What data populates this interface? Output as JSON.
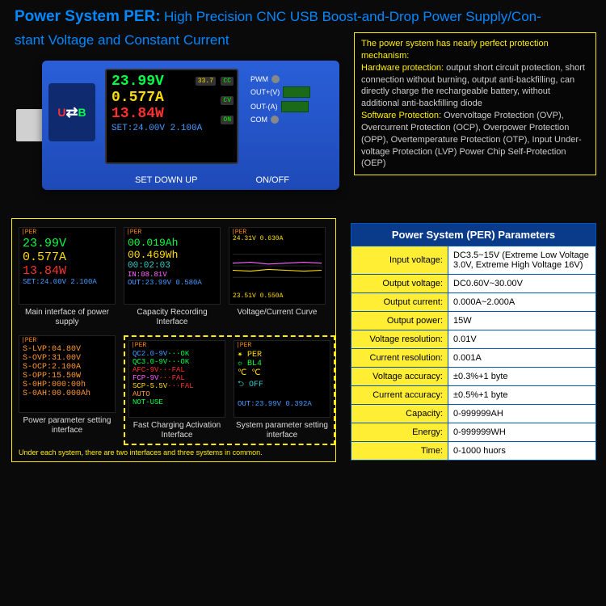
{
  "title": {
    "main": "Power System PER:",
    "sub": "High Precision CNC USB Boost-and-Drop Power Supply/Con-",
    "sub2": "stant Voltage and Constant Current"
  },
  "device": {
    "usb_label_u": "U",
    "usb_label_b": "B",
    "screen": {
      "volts": "23.99V",
      "amps": "0.577A",
      "watts": "13.84W",
      "set": "SET:24.00V 2.100A",
      "temp": "33.7",
      "badge_cc": "CC",
      "badge_cv": "CV",
      "badge_on": "ON"
    },
    "labels": {
      "set": "SET  DOWN  UP",
      "onoff": "ON/OFF"
    },
    "pins": [
      "PWM",
      "OUT+(V)",
      "OUT-(A)",
      "COM"
    ]
  },
  "protection": {
    "header": "The power system has nearly perfect protection mechanism:",
    "hw_label": "Hardware protection:",
    "hw_text": "output short circuit protection, short connection without burning, output anti-backfilling, can directly charge the rechargeable battery, without additional anti-backfilling diode",
    "sw_label": "Software Protection:",
    "sw_text": "Overvoltage Protection (OVP), Overcurrent Protection (OCP), Overpower Protection (OPP), Overtemperature Protection (OTP), Input Under-voltage Protection (LVP) Power Chip Self-Protection (OEP)"
  },
  "screens": {
    "s1": {
      "l1": "23.99V",
      "l2": "0.577A",
      "l3": "13.84W",
      "l4": "SET:24.00V 2.100A",
      "cap": "Main interface of power supply"
    },
    "s2": {
      "l1": "00.019Ah",
      "l2": "00.469Wh",
      "l3": "00:02:03",
      "l4": "IN:08.81V",
      "l5": "OUT:23.99V 0.580A",
      "cap": "Capacity Recording Interface"
    },
    "s3": {
      "top": "24.31V        0.630A",
      "bot": "23.51V        0.550A",
      "cap": "Voltage/Current Curve",
      "curve": {
        "bg": "#000",
        "grid": "#222",
        "line_color": "#55aaff",
        "y1": 0.55,
        "y2": 0.58
      }
    },
    "s4": {
      "lines": [
        "S-LVP:04.80V",
        "S-OVP:31.00V",
        "S-OCP:2.100A",
        "S-OPP:15.50W",
        "S-0HP:000:00h",
        "S-0AH:00.000Ah"
      ],
      "cap": "Power parameter setting interface"
    },
    "s5": {
      "l1a": "QC2.0-9V",
      "l1b": "···OK",
      "l2a": "QC3.0-9V",
      "l2b": "···OK",
      "l3a": "AFC-9V",
      "l3b": "···FAL",
      "l4a": "FCP-9V",
      "l4b": "···FAL",
      "l5a": "SCP-5.5V",
      "l5b": "···FAL",
      "l6": "AUTO",
      "l7": "NOT-USE",
      "cap": "Fast Charging Activation Interface"
    },
    "s6": {
      "l1": "✷ PER",
      "l2": "☼ BL4",
      "l3": "℃ ℃",
      "l4": "⮌ OFF",
      "l5": "OUT:23.99V 0.392A",
      "cap": "System parameter setting interface"
    },
    "footnote": "Under each system, there are two interfaces and three systems in common."
  },
  "params": {
    "header": "Power System (PER) Parameters",
    "rows": [
      {
        "k": "Input voltage:",
        "v": "DC3.5~15V (Extreme Low Voltage 3.0V, Extreme High Voltage 16V)"
      },
      {
        "k": "Output voltage:",
        "v": "DC0.60V~30.00V"
      },
      {
        "k": "Output current:",
        "v": "0.000A~2.000A"
      },
      {
        "k": "Output power:",
        "v": "15W"
      },
      {
        "k": "Voltage resolution:",
        "v": "0.01V"
      },
      {
        "k": "Current resolution:",
        "v": "0.001A"
      },
      {
        "k": "Voltage accuracy:",
        "v": "±0.3%+1 byte"
      },
      {
        "k": "Current accuracy:",
        "v": "±0.5%+1 byte"
      },
      {
        "k": "Capacity:",
        "v": "0-999999AH"
      },
      {
        "k": "Energy:",
        "v": "0-999999WH"
      },
      {
        "k": "Time:",
        "v": "0-1000 huors"
      }
    ]
  }
}
